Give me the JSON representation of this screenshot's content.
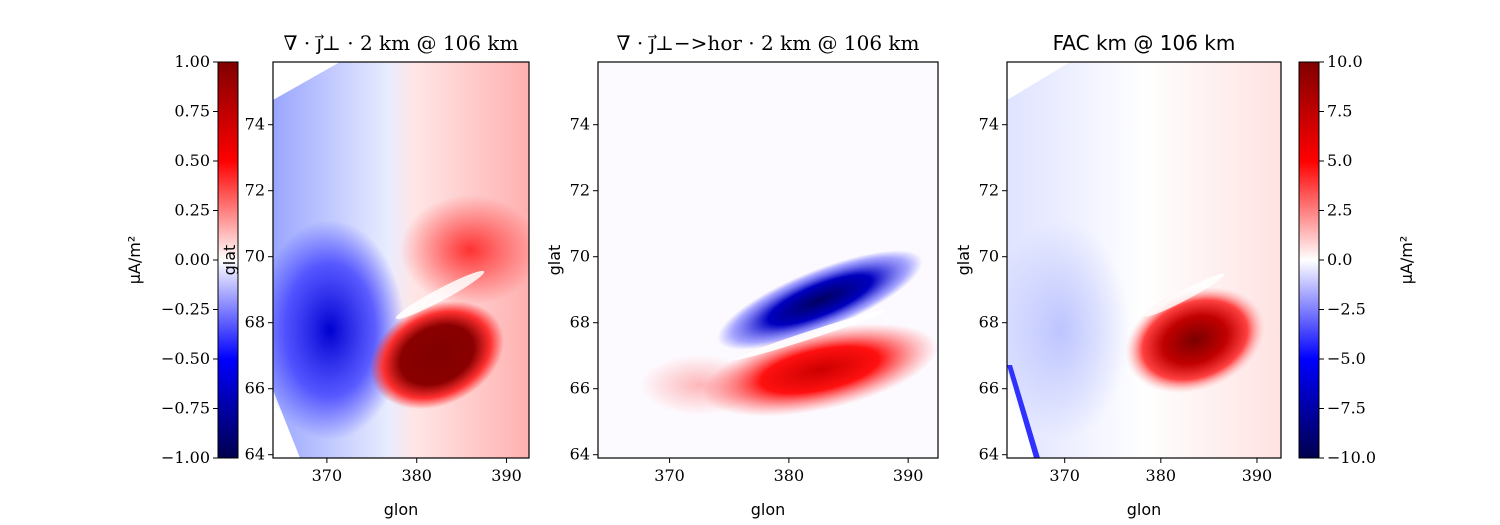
{
  "chart_data": [
    {
      "type": "heatmap",
      "title": "∇ · j⃗⊥ · 2 km @ 106 km",
      "xlabel": "glon",
      "ylabel": "glat",
      "xlim": [
        364,
        392.5
      ],
      "ylim": [
        63.9,
        75.9
      ],
      "xticks": [
        "370",
        "380",
        "390"
      ],
      "yticks": [
        "64",
        "66",
        "68",
        "70",
        "72",
        "74"
      ],
      "colormap": "seismic",
      "colorbar": {
        "position": "left",
        "label": "μA/m²",
        "range": [
          -1.0,
          1.0
        ],
        "ticks": [
          "1.00",
          "0.75",
          "0.50",
          "0.25",
          "0.00",
          "−0.25",
          "−0.50",
          "−0.75",
          "−1.00"
        ]
      }
    },
    {
      "type": "heatmap",
      "title": "∇ · j⃗⊥−>hor · 2 km @ 106 km",
      "xlabel": "glon",
      "ylabel": "glat",
      "xlim": [
        364,
        392.5
      ],
      "ylim": [
        63.9,
        75.9
      ],
      "xticks": [
        "370",
        "380",
        "390"
      ],
      "yticks": [
        "64",
        "66",
        "68",
        "70",
        "72",
        "74"
      ],
      "colormap": "seismic"
    },
    {
      "type": "heatmap",
      "title": "FAC km @ 106 km",
      "xlabel": "glon",
      "ylabel": "glat",
      "xlim": [
        364,
        392.5
      ],
      "ylim": [
        63.9,
        75.9
      ],
      "xticks": [
        "370",
        "380",
        "390"
      ],
      "yticks": [
        "64",
        "66",
        "68",
        "70",
        "72",
        "74"
      ],
      "colormap": "seismic",
      "colorbar": {
        "position": "right",
        "label": "μA/m²",
        "range": [
          -10.0,
          10.0
        ],
        "ticks": [
          "10.0",
          "7.5",
          "5.0",
          "2.5",
          "0.0",
          "−2.5",
          "−5.0",
          "−7.5",
          "−10.0"
        ]
      }
    }
  ],
  "colors": {
    "seismic_low": "#00004d",
    "seismic_mid": "#ffffff",
    "seismic_high": "#800000"
  }
}
